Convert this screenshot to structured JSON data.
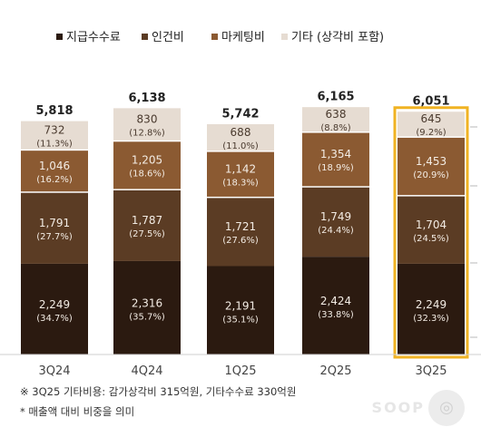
{
  "chart_data": {
    "type": "bar",
    "stacked": true,
    "categories": [
      "3Q24",
      "4Q24",
      "1Q25",
      "2Q25",
      "3Q25"
    ],
    "totals": [
      "5,818",
      "6,138",
      "5,742",
      "6,165",
      "6,051"
    ],
    "highlight_index": 4,
    "series": [
      {
        "name": "지급수수료",
        "color": "#2b1a10",
        "text_color": "#f3ece4",
        "values": [
          2249,
          2316,
          2191,
          2424,
          2249
        ],
        "value_labels": [
          "2,249",
          "2,316",
          "2,191",
          "2,424",
          "2,249"
        ],
        "pct_labels": [
          "(34.7%)",
          "(35.7%)",
          "(35.1%)",
          "(33.8%)",
          "(32.3%)"
        ]
      },
      {
        "name": "인건비",
        "color": "#5b3c24",
        "text_color": "#f3ece4",
        "values": [
          1791,
          1787,
          1721,
          1749,
          1704
        ],
        "value_labels": [
          "1,791",
          "1,787",
          "1,721",
          "1,749",
          "1,704"
        ],
        "pct_labels": [
          "(27.7%)",
          "(27.5%)",
          "(27.6%)",
          "(24.4%)",
          "(24.5%)"
        ]
      },
      {
        "name": "마케팅비",
        "color": "#8b5a32",
        "text_color": "#f3ece4",
        "values": [
          1046,
          1205,
          1142,
          1354,
          1453
        ],
        "value_labels": [
          "1,046",
          "1,205",
          "1,142",
          "1,354",
          "1,453"
        ],
        "pct_labels": [
          "(16.2%)",
          "(18.6%)",
          "(18.3%)",
          "(18.9%)",
          "(20.9%)"
        ]
      },
      {
        "name": "기타 (상각비 포함)",
        "color": "#e6dcd2",
        "text_color": "#4a3a2e",
        "values": [
          732,
          830,
          688,
          638,
          645
        ],
        "value_labels": [
          "732",
          "830",
          "688",
          "638",
          "645"
        ],
        "pct_labels": [
          "(11.3%)",
          "(12.8%)",
          "(11.0%)",
          "(8.8%)",
          "(9.2%)"
        ]
      }
    ],
    "highlight_border_color": "#f0b323",
    "highlight_total_color": "#c0392b"
  },
  "notes": {
    "line1": "※ 3Q25 기타비용: 감가상각비 315억원, 기타수수료 330억원",
    "line2": "* 매출액 대비 비중을 의미"
  }
}
